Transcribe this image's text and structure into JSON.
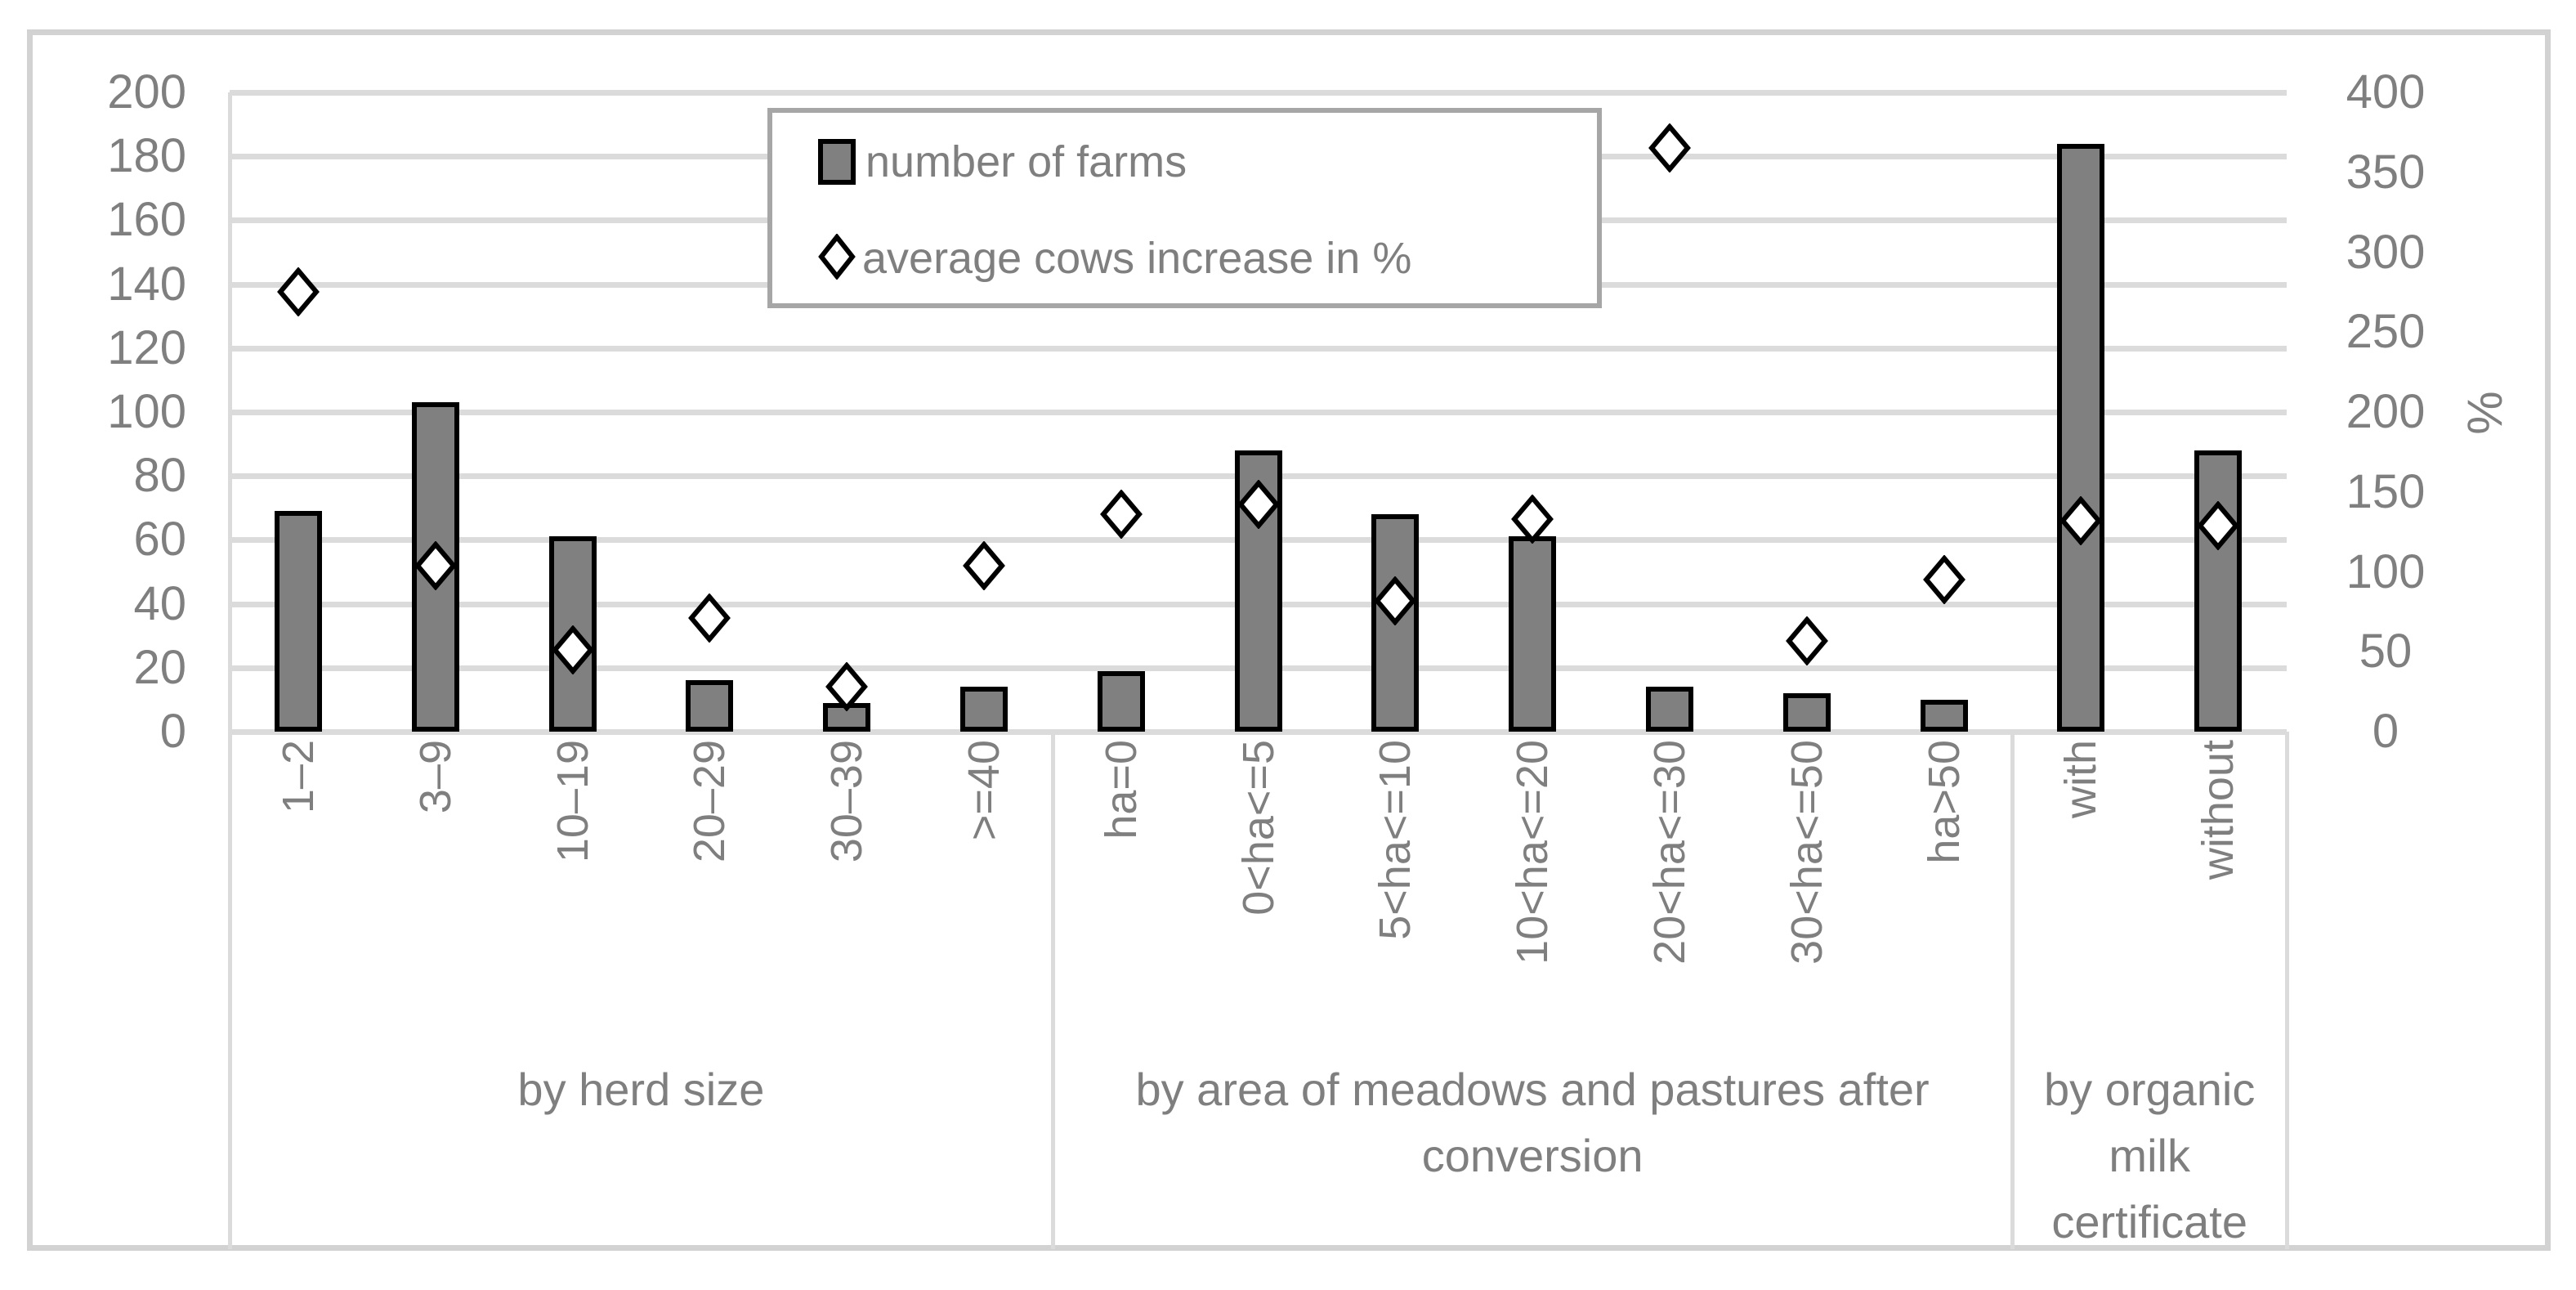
{
  "chart_data": {
    "type": "bar",
    "subtype": "combo bar + scatter with diamond markers, dual value axes",
    "title": "",
    "grid": "horizontal gridlines on, light gray",
    "legend_position": "top-center, framed box",
    "categories": [
      "1–2",
      "3–9",
      "10–19",
      "20–29",
      "30–39",
      ">=40",
      "ha=0",
      "0<ha<=5",
      "5<ha<=10",
      "10<ha<=20",
      "20<ha<=30",
      "30<ha<=50",
      "ha>50",
      "with",
      "without"
    ],
    "series": [
      {
        "name": "number of farms",
        "type": "bar",
        "axis": "left",
        "values": [
          69,
          103,
          61,
          16,
          9,
          14,
          19,
          88,
          68,
          61,
          14,
          12,
          10,
          184,
          88
        ]
      },
      {
        "name": "average cows increase in %",
        "type": "scatter",
        "marker": "diamond",
        "axis": "right",
        "values": [
          275,
          104,
          51,
          71,
          28,
          104,
          136,
          142,
          82,
          133,
          365,
          57,
          95,
          132,
          129
        ]
      }
    ],
    "groups": [
      {
        "label": "by herd size",
        "start": 0,
        "end": 5
      },
      {
        "label": "by area of meadows and pastures after conversion",
        "start": 6,
        "end": 12
      },
      {
        "label": "by organic milk certificate",
        "start": 13,
        "end": 14
      }
    ],
    "left_axis": {
      "min": 0,
      "max": 200,
      "step": 20,
      "ticks": [
        0,
        20,
        40,
        60,
        80,
        100,
        120,
        140,
        160,
        180,
        200
      ],
      "label": ""
    },
    "right_axis": {
      "min": 0,
      "max": 400,
      "step": 50,
      "ticks": [
        0,
        50,
        100,
        150,
        200,
        250,
        300,
        350,
        400
      ],
      "label": "%"
    }
  },
  "colors": {
    "background": "#ffffff",
    "bar_fill": "#808080",
    "bar_border": "#000000",
    "marker_fill": "#ffffff",
    "marker_border": "#000000",
    "gridline": "#dbdbdb",
    "axis_text": "#7f7f7f",
    "chart_border": "#d2d2d2",
    "legend_border": "#a6a6a6"
  }
}
